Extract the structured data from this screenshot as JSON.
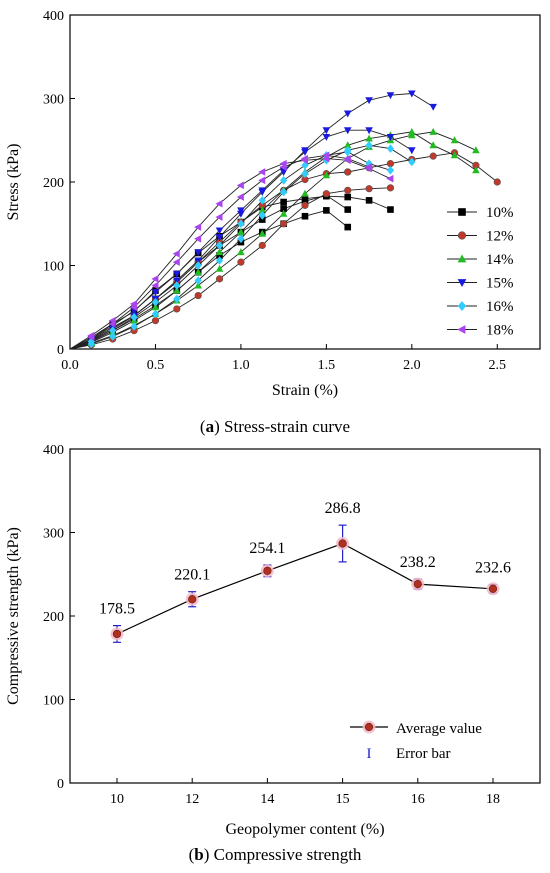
{
  "chart_data": [
    {
      "type": "line",
      "xlabel": "Strain (%)",
      "ylabel": "Stress (kPa)",
      "xlim": [
        0,
        2.75
      ],
      "ylim": [
        0,
        400
      ],
      "xticks": [
        0.0,
        0.5,
        1.0,
        1.5,
        2.0,
        2.5
      ],
      "xtick_labels": [
        "0.0",
        "0.5",
        "1.0",
        "1.5",
        "2.0",
        "2.5"
      ],
      "yticks": [
        0,
        100,
        200,
        300,
        400
      ],
      "ytick_labels": [
        "0",
        "100",
        "200",
        "300",
        "400"
      ],
      "legend_position": "right",
      "caption_letter": "a",
      "caption_text": " Stress-strain curve",
      "series": [
        {
          "name": "10%",
          "color": "#000000",
          "marker": "square",
          "curves": [
            [
              [
                0,
                0
              ],
              [
                0.125,
                12
              ],
              [
                0.25,
                30
              ],
              [
                0.375,
                45
              ],
              [
                0.5,
                70
              ],
              [
                0.625,
                90
              ],
              [
                0.75,
                115
              ],
              [
                0.875,
                135
              ],
              [
                1.0,
                152
              ],
              [
                1.125,
                170
              ],
              [
                1.25,
                176
              ],
              [
                1.375,
                180
              ],
              [
                1.5,
                183
              ],
              [
                1.625,
                182
              ],
              [
                1.75,
                178
              ],
              [
                1.875,
                167
              ]
            ],
            [
              [
                0,
                0
              ],
              [
                0.125,
                9
              ],
              [
                0.25,
                22
              ],
              [
                0.375,
                36
              ],
              [
                0.5,
                52
              ],
              [
                0.625,
                70
              ],
              [
                0.75,
                92
              ],
              [
                0.875,
                112
              ],
              [
                1.0,
                128
              ],
              [
                1.125,
                140
              ],
              [
                1.25,
                150
              ],
              [
                1.375,
                159
              ],
              [
                1.5,
                166
              ],
              [
                1.625,
                146
              ]
            ],
            [
              [
                0,
                0
              ],
              [
                0.125,
                11
              ],
              [
                0.25,
                26
              ],
              [
                0.375,
                40
              ],
              [
                0.5,
                60
              ],
              [
                0.625,
                80
              ],
              [
                0.75,
                104
              ],
              [
                0.875,
                124
              ],
              [
                1.0,
                140
              ],
              [
                1.125,
                155
              ],
              [
                1.25,
                168
              ],
              [
                1.375,
                177
              ],
              [
                1.5,
                184
              ],
              [
                1.625,
                167
              ]
            ]
          ]
        },
        {
          "name": "12%",
          "color": "#c0392b",
          "marker": "circle",
          "curves": [
            [
              [
                0,
                0
              ],
              [
                0.125,
                5
              ],
              [
                0.25,
                12
              ],
              [
                0.375,
                22
              ],
              [
                0.5,
                34
              ],
              [
                0.625,
                48
              ],
              [
                0.75,
                64
              ],
              [
                0.875,
                84
              ],
              [
                1.0,
                104
              ],
              [
                1.125,
                124
              ],
              [
                1.25,
                150
              ],
              [
                1.375,
                172
              ],
              [
                1.5,
                186
              ],
              [
                1.625,
                190
              ],
              [
                1.75,
                192
              ],
              [
                1.875,
                193
              ]
            ],
            [
              [
                0,
                0
              ],
              [
                0.125,
                10
              ],
              [
                0.25,
                24
              ],
              [
                0.375,
                40
              ],
              [
                0.5,
                60
              ],
              [
                0.625,
                80
              ],
              [
                0.75,
                104
              ],
              [
                0.875,
                128
              ],
              [
                1.0,
                152
              ],
              [
                1.125,
                172
              ],
              [
                1.25,
                190
              ],
              [
                1.375,
                203
              ],
              [
                1.5,
                210
              ],
              [
                1.625,
                212
              ]
            ],
            [
              [
                1.625,
                212
              ],
              [
                1.75,
                217
              ],
              [
                1.875,
                222
              ],
              [
                2.0,
                227
              ],
              [
                2.125,
                231
              ],
              [
                2.25,
                235
              ],
              [
                2.375,
                220
              ],
              [
                2.5,
                200
              ]
            ]
          ]
        },
        {
          "name": "14%",
          "color": "#22bb22",
          "marker": "triangle-up",
          "curves": [
            [
              [
                0,
                0
              ],
              [
                0.125,
                7
              ],
              [
                0.25,
                16
              ],
              [
                0.375,
                28
              ],
              [
                0.5,
                42
              ],
              [
                0.625,
                58
              ],
              [
                0.75,
                76
              ],
              [
                0.875,
                96
              ],
              [
                1.0,
                116
              ],
              [
                1.125,
                138
              ],
              [
                1.25,
                162
              ],
              [
                1.375,
                186
              ],
              [
                1.5,
                208
              ],
              [
                1.625,
                228
              ],
              [
                1.75,
                242
              ],
              [
                1.875,
                250
              ],
              [
                2.0,
                256
              ],
              [
                2.125,
                260
              ],
              [
                2.25,
                250
              ],
              [
                2.375,
                238
              ]
            ],
            [
              [
                0,
                0
              ],
              [
                0.125,
                8
              ],
              [
                0.25,
                20
              ],
              [
                0.375,
                34
              ],
              [
                0.5,
                50
              ],
              [
                0.625,
                70
              ],
              [
                0.75,
                92
              ],
              [
                0.875,
                116
              ],
              [
                1.0,
                140
              ],
              [
                1.125,
                166
              ],
              [
                1.25,
                190
              ],
              [
                1.375,
                212
              ],
              [
                1.5,
                230
              ],
              [
                1.625,
                244
              ],
              [
                1.75,
                252
              ],
              [
                1.875,
                256
              ],
              [
                2.0,
                260
              ],
              [
                2.125,
                244
              ],
              [
                2.25,
                232
              ],
              [
                2.375,
                214
              ]
            ]
          ]
        },
        {
          "name": "15%",
          "color": "#1a1adf",
          "marker": "triangle-down",
          "curves": [
            [
              [
                0,
                0
              ],
              [
                0.125,
                10
              ],
              [
                0.25,
                24
              ],
              [
                0.375,
                40
              ],
              [
                0.5,
                60
              ],
              [
                0.625,
                82
              ],
              [
                0.75,
                106
              ],
              [
                0.875,
                134
              ],
              [
                1.0,
                162
              ],
              [
                1.125,
                188
              ],
              [
                1.25,
                212
              ],
              [
                1.375,
                238
              ],
              [
                1.5,
                262
              ],
              [
                1.625,
                282
              ],
              [
                1.75,
                298
              ],
              [
                1.875,
                304
              ],
              [
                2.0,
                306
              ],
              [
                2.125,
                290
              ]
            ],
            [
              [
                0,
                0
              ],
              [
                0.125,
                12
              ],
              [
                0.25,
                28
              ],
              [
                0.375,
                46
              ],
              [
                0.5,
                68
              ],
              [
                0.625,
                90
              ],
              [
                0.75,
                116
              ],
              [
                0.875,
                142
              ],
              [
                1.0,
                166
              ],
              [
                1.125,
                190
              ],
              [
                1.25,
                214
              ],
              [
                1.375,
                236
              ],
              [
                1.5,
                254
              ],
              [
                1.625,
                262
              ],
              [
                1.75,
                262
              ],
              [
                1.875,
                254
              ],
              [
                2.0,
                238
              ]
            ]
          ]
        },
        {
          "name": "16%",
          "color": "#33ccff",
          "marker": "diamond",
          "curves": [
            [
              [
                0,
                0
              ],
              [
                0.125,
                6
              ],
              [
                0.25,
                15
              ],
              [
                0.375,
                27
              ],
              [
                0.5,
                42
              ],
              [
                0.625,
                60
              ],
              [
                0.75,
                82
              ],
              [
                0.875,
                106
              ],
              [
                1.0,
                132
              ],
              [
                1.125,
                160
              ],
              [
                1.25,
                188
              ],
              [
                1.375,
                210
              ],
              [
                1.5,
                226
              ],
              [
                1.625,
                238
              ],
              [
                1.75,
                244
              ],
              [
                1.875,
                240
              ],
              [
                2.0,
                224
              ]
            ],
            [
              [
                0,
                0
              ],
              [
                0.125,
                9
              ],
              [
                0.25,
                22
              ],
              [
                0.375,
                38
              ],
              [
                0.5,
                56
              ],
              [
                0.625,
                76
              ],
              [
                0.75,
                100
              ],
              [
                0.875,
                124
              ],
              [
                1.0,
                150
              ],
              [
                1.125,
                178
              ],
              [
                1.25,
                202
              ],
              [
                1.375,
                220
              ],
              [
                1.5,
                232
              ],
              [
                1.625,
                236
              ],
              [
                1.75,
                222
              ],
              [
                1.875,
                214
              ]
            ]
          ]
        },
        {
          "name": "18%",
          "color": "#aa44ee",
          "marker": "triangle-left",
          "curves": [
            [
              [
                0,
                0
              ],
              [
                0.125,
                14
              ],
              [
                0.25,
                30
              ],
              [
                0.375,
                50
              ],
              [
                0.5,
                76
              ],
              [
                0.625,
                104
              ],
              [
                0.75,
                132
              ],
              [
                0.875,
                158
              ],
              [
                1.0,
                182
              ],
              [
                1.125,
                202
              ],
              [
                1.25,
                218
              ],
              [
                1.375,
                228
              ],
              [
                1.5,
                232
              ],
              [
                1.625,
                228
              ],
              [
                1.75,
                218
              ]
            ],
            [
              [
                0,
                0
              ],
              [
                0.125,
                16
              ],
              [
                0.25,
                34
              ],
              [
                0.375,
                54
              ],
              [
                0.5,
                84
              ],
              [
                0.625,
                114
              ],
              [
                0.75,
                146
              ],
              [
                0.875,
                174
              ],
              [
                1.0,
                196
              ],
              [
                1.125,
                212
              ],
              [
                1.25,
                222
              ],
              [
                1.375,
                226
              ],
              [
                1.5,
                228
              ],
              [
                1.625,
                226
              ],
              [
                1.75,
                216
              ],
              [
                1.875,
                204
              ]
            ]
          ]
        }
      ]
    },
    {
      "type": "line",
      "xlabel": "Geopolymer content (%)",
      "ylabel": "Compressive strength (kPa)",
      "ylim": [
        0,
        400
      ],
      "yticks": [
        0,
        100,
        200,
        300,
        400
      ],
      "ytick_labels": [
        "0",
        "100",
        "200",
        "300",
        "400"
      ],
      "categories": [
        "10",
        "12",
        "14",
        "15",
        "16",
        "18"
      ],
      "legend_position": "bottom-right",
      "caption_letter": "b",
      "caption_text": " Compressive strength",
      "series": [
        {
          "name": "Average value",
          "color": "#b03020",
          "values": [
            178.5,
            220.1,
            254.1,
            286.8,
            238.2,
            232.6
          ]
        }
      ],
      "value_labels": [
        "178.5",
        "220.1",
        "254.1",
        "286.8",
        "238.2",
        "232.6"
      ],
      "error_bar_label": "Error bar",
      "error_bar_symbol": "I",
      "error_bar_color": "#2222cc",
      "errors": [
        10,
        9,
        7,
        22,
        6,
        5
      ]
    }
  ]
}
